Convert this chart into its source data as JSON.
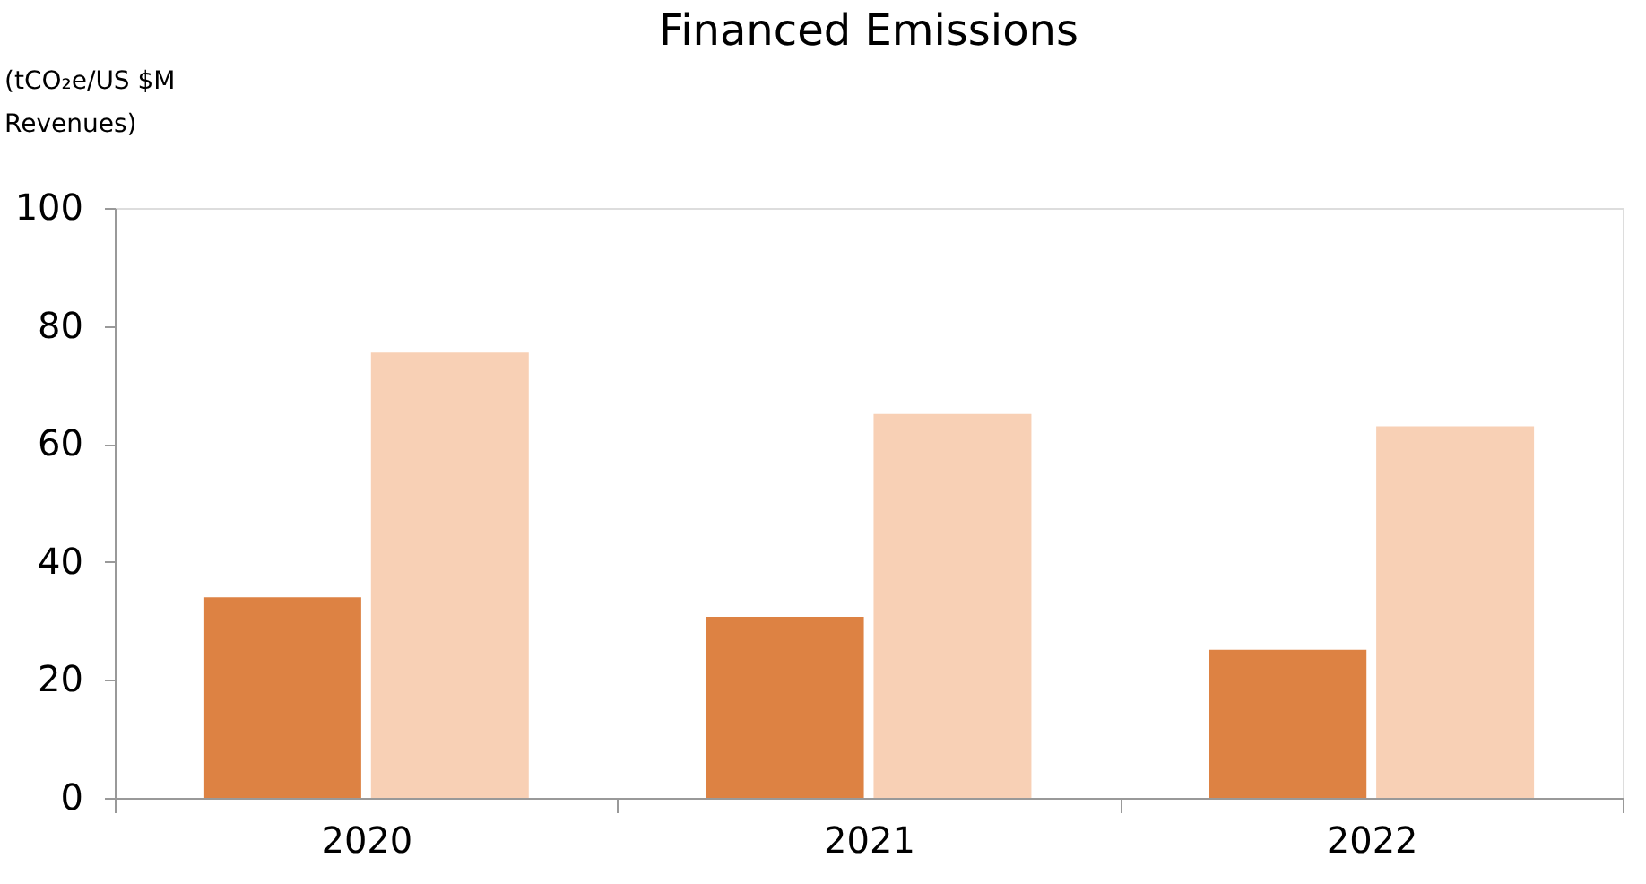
{
  "chart_data": {
    "type": "bar",
    "title": "Financed Emissions",
    "ylabel": "(tCO₂e/US $M Revenues)",
    "categories": [
      "2020",
      "2021",
      "2022"
    ],
    "series": [
      {
        "color": "#dd8243",
        "values": [
          34.0,
          30.7,
          25.1
        ]
      },
      {
        "color": "#f8d0b5",
        "values": [
          75.5,
          65.1,
          63.0
        ]
      }
    ],
    "ylim": [
      0,
      100
    ],
    "yticks": [
      0,
      20,
      40,
      60,
      80,
      100
    ],
    "grid": false,
    "legend": false
  }
}
